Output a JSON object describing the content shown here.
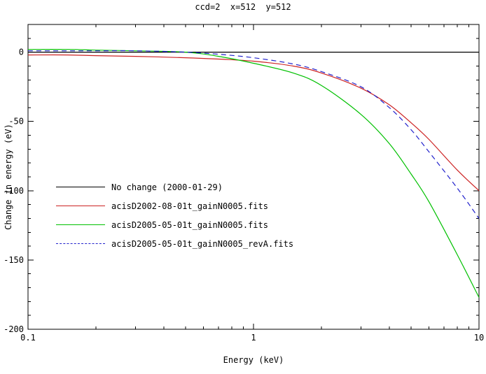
{
  "figure": {
    "background": "#ffffff",
    "frame_color": "#000000"
  },
  "chart_data": {
    "type": "line",
    "title": "ccd=2  x=512  y=512",
    "xlabel": "Energy (keV)",
    "ylabel": "Change in energy (eV)",
    "xscale": "log",
    "yscale": "linear",
    "xlim": [
      0.1,
      10
    ],
    "ylim": [
      -200,
      20
    ],
    "grid": false,
    "legend_position": "left-middle",
    "xticks": {
      "major": [
        0.1,
        1,
        10
      ],
      "labels": [
        "0.1",
        "1",
        "10"
      ],
      "minor": [
        0.2,
        0.3,
        0.4,
        0.5,
        0.6,
        0.7,
        0.8,
        0.9,
        2,
        3,
        4,
        5,
        6,
        7,
        8,
        9
      ]
    },
    "yticks": {
      "major": [
        0,
        -50,
        -100,
        -150,
        -200
      ],
      "labels": [
        "0",
        "-50",
        "-100",
        "-150",
        "-200"
      ],
      "minor": [
        10,
        -10,
        -20,
        -30,
        -40,
        -60,
        -70,
        -80,
        -90,
        -110,
        -120,
        -130,
        -140,
        -160,
        -170,
        -180,
        -190
      ]
    },
    "x": [
      0.1,
      0.15,
      0.2,
      0.3,
      0.5,
      0.7,
      1,
      1.5,
      2,
      3,
      4,
      5,
      6,
      8,
      10
    ],
    "series": [
      {
        "name": "No change (2000-01-29)",
        "color": "#000000",
        "style": "solid",
        "values": [
          0,
          0,
          0,
          0,
          0,
          0,
          0,
          0,
          0,
          0,
          0,
          0,
          0,
          0,
          0
        ]
      },
      {
        "name": "acisD2002-08-01t_gainN0005.fits",
        "color": "#cc2222",
        "style": "solid",
        "values": [
          -2,
          -2,
          -2.5,
          -3,
          -4,
          -5,
          -6.5,
          -10,
          -15,
          -26,
          -38,
          -51,
          -63,
          -85,
          -100
        ]
      },
      {
        "name": "acisD2005-05-01t_gainN0005.fits",
        "color": "#00c000",
        "style": "solid",
        "values": [
          2,
          2,
          1.5,
          1,
          0,
          -3,
          -8,
          -15,
          -24,
          -45,
          -66,
          -88,
          -108,
          -146,
          -177
        ]
      },
      {
        "name": "acisD2005-05-01t_gainN0005_revA.fits",
        "color": "#2222cc",
        "style": "dashed",
        "values": [
          1,
          1,
          1,
          1,
          0,
          -1.5,
          -4,
          -8.5,
          -14,
          -25,
          -40,
          -56,
          -72,
          -98,
          -120
        ]
      }
    ]
  }
}
